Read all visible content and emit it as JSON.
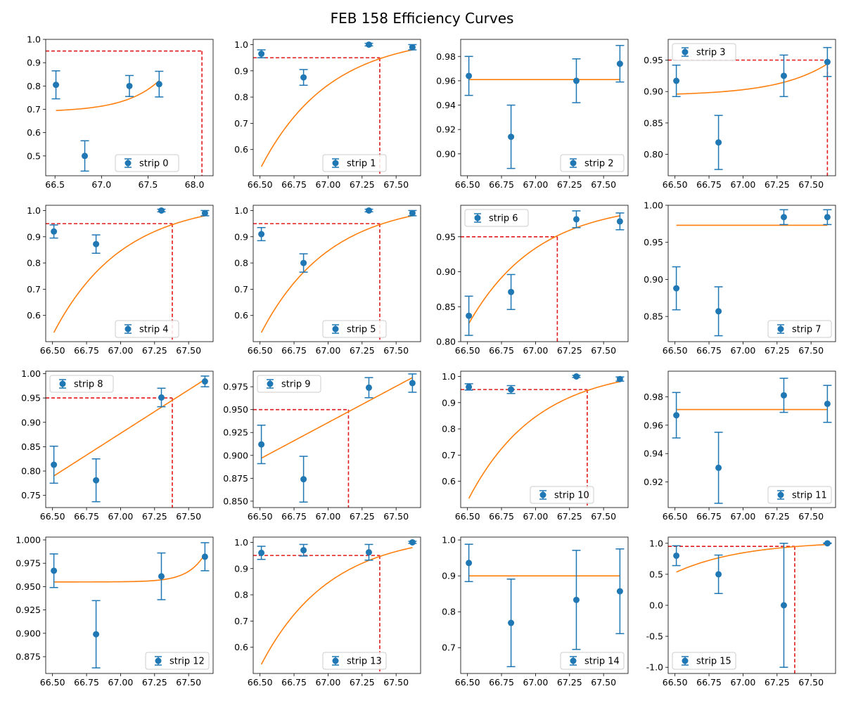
{
  "title": "FEB 158 Efficiency Curves",
  "colors": {
    "points": "#1f77b4",
    "fit": "#ff7f0e",
    "threshold": "#e31a1c",
    "axis": "#000000"
  },
  "chart_data": [
    {
      "type": "scatter",
      "legend": "strip 0",
      "legend_loc": "lower-center",
      "x": [
        66.51,
        66.82,
        67.3,
        67.62
      ],
      "y": [
        0.805,
        0.5,
        0.8,
        0.808
      ],
      "yerr": [
        0.06,
        0.065,
        0.045,
        0.055
      ],
      "fit_x": [
        66.51,
        67.62
      ],
      "fit_y": [
        0.695,
        0.823
      ],
      "fit_shape": "convex-rising",
      "threshold": {
        "x": 68.08,
        "y": 0.95
      },
      "xlim": [
        66.4,
        68.2
      ],
      "ylim": [
        0.415,
        1.0
      ],
      "xticks": [
        "66.5",
        "67.0",
        "67.5",
        "68.0"
      ],
      "yticks": [
        "0.5",
        "0.6",
        "0.7",
        "0.8",
        "0.9",
        "1.0"
      ]
    },
    {
      "type": "scatter",
      "legend": "strip 1",
      "legend_loc": "lower-center",
      "x": [
        66.51,
        66.82,
        67.3,
        67.62
      ],
      "y": [
        0.965,
        0.875,
        1.0,
        0.99
      ],
      "yerr": [
        0.015,
        0.03,
        0.005,
        0.01
      ],
      "fit_x": [
        66.51,
        67.62
      ],
      "fit_y": [
        0.535,
        0.98
      ],
      "fit_shape": "saturating",
      "threshold": {
        "x": 67.38,
        "y": 0.95
      },
      "xlim": [
        66.45,
        67.68
      ],
      "ylim": [
        0.5,
        1.02
      ],
      "xticks": [
        "66.50",
        "66.75",
        "67.00",
        "67.25",
        "67.50"
      ],
      "yticks": [
        "0.6",
        "0.7",
        "0.8",
        "0.9",
        "1.0"
      ]
    },
    {
      "type": "scatter",
      "legend": "strip 2",
      "legend_loc": "lower-right",
      "x": [
        66.51,
        66.82,
        67.3,
        67.62
      ],
      "y": [
        0.964,
        0.914,
        0.96,
        0.974
      ],
      "yerr": [
        0.016,
        0.026,
        0.018,
        0.015
      ],
      "fit_x": [
        66.51,
        67.62
      ],
      "fit_y": [
        0.961,
        0.961
      ],
      "fit_shape": "flat",
      "threshold": null,
      "xlim": [
        66.45,
        67.68
      ],
      "ylim": [
        0.882,
        0.994
      ],
      "xticks": [
        "66.50",
        "66.75",
        "67.00",
        "67.25",
        "67.50"
      ],
      "yticks": [
        "0.90",
        "0.92",
        "0.94",
        "0.96",
        "0.98"
      ]
    },
    {
      "type": "scatter",
      "legend": "strip 3",
      "legend_loc": "upper-left",
      "x": [
        66.51,
        66.82,
        67.3,
        67.62
      ],
      "y": [
        0.917,
        0.819,
        0.925,
        0.947
      ],
      "yerr": [
        0.025,
        0.043,
        0.033,
        0.023
      ],
      "fit_x": [
        66.51,
        67.62
      ],
      "fit_y": [
        0.896,
        0.944
      ],
      "fit_shape": "convex-rising",
      "threshold": {
        "x": 67.62,
        "y": 0.95
      },
      "xlim": [
        66.45,
        67.68
      ],
      "ylim": [
        0.766,
        0.983
      ],
      "xticks": [
        "66.50",
        "66.75",
        "67.00",
        "67.25",
        "67.50"
      ],
      "yticks": [
        "0.80",
        "0.85",
        "0.90",
        "0.95"
      ]
    },
    {
      "type": "scatter",
      "legend": "strip 4",
      "legend_loc": "lower-center",
      "x": [
        66.51,
        66.82,
        67.3,
        67.62
      ],
      "y": [
        0.92,
        0.872,
        1.0,
        0.99
      ],
      "yerr": [
        0.025,
        0.035,
        0.005,
        0.01
      ],
      "fit_x": [
        66.51,
        67.62
      ],
      "fit_y": [
        0.535,
        0.98
      ],
      "fit_shape": "saturating",
      "threshold": {
        "x": 67.38,
        "y": 0.95
      },
      "xlim": [
        66.45,
        67.68
      ],
      "ylim": [
        0.5,
        1.02
      ],
      "xticks": [
        "66.50",
        "66.75",
        "67.00",
        "67.25",
        "67.50"
      ],
      "yticks": [
        "0.6",
        "0.7",
        "0.8",
        "0.9",
        "1.0"
      ]
    },
    {
      "type": "scatter",
      "legend": "strip 5",
      "legend_loc": "lower-center",
      "x": [
        66.51,
        66.82,
        67.3,
        67.62
      ],
      "y": [
        0.91,
        0.8,
        1.0,
        0.99
      ],
      "yerr": [
        0.025,
        0.035,
        0.005,
        0.01
      ],
      "fit_x": [
        66.51,
        67.62
      ],
      "fit_y": [
        0.535,
        0.98
      ],
      "fit_shape": "saturating",
      "threshold": {
        "x": 67.38,
        "y": 0.95
      },
      "xlim": [
        66.45,
        67.68
      ],
      "ylim": [
        0.5,
        1.02
      ],
      "xticks": [
        "66.50",
        "66.75",
        "67.00",
        "67.25",
        "67.50"
      ],
      "yticks": [
        "0.6",
        "0.7",
        "0.8",
        "0.9",
        "1.0"
      ]
    },
    {
      "type": "scatter",
      "legend": "strip 6",
      "legend_loc": "upper-left",
      "x": [
        66.51,
        66.82,
        67.3,
        67.62
      ],
      "y": [
        0.837,
        0.871,
        0.975,
        0.972
      ],
      "yerr": [
        0.028,
        0.025,
        0.012,
        0.012
      ],
      "fit_x": [
        66.51,
        67.62
      ],
      "fit_y": [
        0.826,
        0.98
      ],
      "fit_shape": "saturating",
      "threshold": {
        "x": 67.16,
        "y": 0.95
      },
      "xlim": [
        66.45,
        67.68
      ],
      "ylim": [
        0.8,
        0.995
      ],
      "xticks": [
        "66.50",
        "66.75",
        "67.00",
        "67.25",
        "67.50"
      ],
      "yticks": [
        "0.80",
        "0.85",
        "0.90",
        "0.95"
      ]
    },
    {
      "type": "scatter",
      "legend": "strip 7",
      "legend_loc": "lower-right",
      "x": [
        66.51,
        66.82,
        67.3,
        67.62
      ],
      "y": [
        0.888,
        0.857,
        0.984,
        0.984
      ],
      "yerr": [
        0.029,
        0.033,
        0.01,
        0.01
      ],
      "fit_x": [
        66.51,
        67.62
      ],
      "fit_y": [
        0.973,
        0.973
      ],
      "fit_shape": "flat",
      "threshold": null,
      "xlim": [
        66.45,
        67.68
      ],
      "ylim": [
        0.816,
        1.0
      ],
      "xticks": [
        "66.50",
        "66.75",
        "67.00",
        "67.25",
        "67.50"
      ],
      "yticks": [
        "0.85",
        "0.90",
        "0.95",
        "1.00"
      ]
    },
    {
      "type": "scatter",
      "legend": "strip 8",
      "legend_loc": "upper-left",
      "x": [
        66.51,
        66.82,
        67.3,
        67.62
      ],
      "y": [
        0.813,
        0.781,
        0.951,
        0.984
      ],
      "yerr": [
        0.038,
        0.044,
        0.019,
        0.011
      ],
      "fit_x": [
        66.51,
        67.62
      ],
      "fit_y": [
        0.79,
        0.988
      ],
      "fit_shape": "linear",
      "threshold": {
        "x": 67.38,
        "y": 0.95
      },
      "xlim": [
        66.45,
        67.68
      ],
      "ylim": [
        0.725,
        1.005
      ],
      "xticks": [
        "66.50",
        "66.75",
        "67.00",
        "67.25",
        "67.50"
      ],
      "yticks": [
        "0.75",
        "0.80",
        "0.85",
        "0.90",
        "0.95",
        "1.00"
      ]
    },
    {
      "type": "scatter",
      "legend": "strip 9",
      "legend_loc": "upper-left",
      "x": [
        66.51,
        66.82,
        67.3,
        67.62
      ],
      "y": [
        0.912,
        0.874,
        0.974,
        0.979
      ],
      "yerr": [
        0.021,
        0.025,
        0.011,
        0.01
      ],
      "fit_x": [
        66.51,
        67.62
      ],
      "fit_y": [
        0.897,
        0.985
      ],
      "fit_shape": "linear",
      "threshold": {
        "x": 67.15,
        "y": 0.95
      },
      "xlim": [
        66.45,
        67.68
      ],
      "ylim": [
        0.843,
        0.992
      ],
      "xticks": [
        "66.50",
        "66.75",
        "67.00",
        "67.25",
        "67.50"
      ],
      "yticks": [
        "0.850",
        "0.875",
        "0.900",
        "0.925",
        "0.950",
        "0.975"
      ]
    },
    {
      "type": "scatter",
      "legend": "strip 10",
      "legend_loc": "lower-center",
      "x": [
        66.51,
        66.82,
        67.3,
        67.62
      ],
      "y": [
        0.96,
        0.95,
        1.0,
        0.99
      ],
      "yerr": [
        0.012,
        0.015,
        0.004,
        0.008
      ],
      "fit_x": [
        66.51,
        67.62
      ],
      "fit_y": [
        0.535,
        0.98
      ],
      "fit_shape": "saturating",
      "threshold": {
        "x": 67.38,
        "y": 0.95
      },
      "xlim": [
        66.45,
        67.68
      ],
      "ylim": [
        0.5,
        1.02
      ],
      "xticks": [
        "66.50",
        "66.75",
        "67.00",
        "67.25",
        "67.50"
      ],
      "yticks": [
        "0.6",
        "0.7",
        "0.8",
        "0.9",
        "1.0"
      ]
    },
    {
      "type": "scatter",
      "legend": "strip 11",
      "legend_loc": "lower-right",
      "x": [
        66.51,
        66.82,
        67.3,
        67.62
      ],
      "y": [
        0.967,
        0.93,
        0.981,
        0.975
      ],
      "yerr": [
        0.016,
        0.025,
        0.012,
        0.013
      ],
      "fit_x": [
        66.51,
        67.62
      ],
      "fit_y": [
        0.971,
        0.971
      ],
      "fit_shape": "flat",
      "threshold": null,
      "xlim": [
        66.45,
        67.68
      ],
      "ylim": [
        0.902,
        0.998
      ],
      "xticks": [
        "66.50",
        "66.75",
        "67.00",
        "67.25",
        "67.50"
      ],
      "yticks": [
        "0.92",
        "0.94",
        "0.96",
        "0.98"
      ]
    },
    {
      "type": "scatter",
      "legend": "strip 12",
      "legend_loc": "lower-right",
      "x": [
        66.51,
        66.82,
        67.3,
        67.62
      ],
      "y": [
        0.967,
        0.899,
        0.961,
        0.982
      ],
      "yerr": [
        0.018,
        0.036,
        0.025,
        0.015
      ],
      "fit_x": [
        66.51,
        67.62
      ],
      "fit_y": [
        0.955,
        0.985
      ],
      "fit_shape": "late-rise",
      "threshold": null,
      "xlim": [
        66.45,
        67.68
      ],
      "ylim": [
        0.857,
        1.003
      ],
      "xticks": [
        "66.50",
        "66.75",
        "67.00",
        "67.25",
        "67.50"
      ],
      "yticks": [
        "0.875",
        "0.900",
        "0.925",
        "0.950",
        "0.975",
        "1.000"
      ]
    },
    {
      "type": "scatter",
      "legend": "strip 13",
      "legend_loc": "lower-center",
      "x": [
        66.51,
        66.82,
        67.3,
        67.62
      ],
      "y": [
        0.96,
        0.97,
        0.962,
        1.0
      ],
      "yerr": [
        0.025,
        0.022,
        0.03,
        0.004
      ],
      "fit_x": [
        66.51,
        67.62
      ],
      "fit_y": [
        0.535,
        0.98
      ],
      "fit_shape": "saturating",
      "threshold": {
        "x": 67.38,
        "y": 0.95
      },
      "xlim": [
        66.45,
        67.68
      ],
      "ylim": [
        0.5,
        1.02
      ],
      "xticks": [
        "66.50",
        "66.75",
        "67.00",
        "67.25",
        "67.50"
      ],
      "yticks": [
        "0.6",
        "0.7",
        "0.8",
        "0.9",
        "1.0"
      ]
    },
    {
      "type": "scatter",
      "legend": "strip 14",
      "legend_loc": "lower-right",
      "x": [
        66.51,
        66.82,
        67.3,
        67.62
      ],
      "y": [
        0.936,
        0.769,
        0.833,
        0.857
      ],
      "yerr": [
        0.052,
        0.122,
        0.138,
        0.118
      ],
      "fit_x": [
        66.51,
        67.62
      ],
      "fit_y": [
        0.9,
        0.9
      ],
      "fit_shape": "flat",
      "threshold": null,
      "xlim": [
        66.45,
        67.68
      ],
      "ylim": [
        0.628,
        1.008
      ],
      "xticks": [
        "66.50",
        "66.75",
        "67.00",
        "67.25",
        "67.50"
      ],
      "yticks": [
        "0.7",
        "0.8",
        "0.9",
        "1.0"
      ]
    },
    {
      "type": "scatter",
      "legend": "strip 15",
      "legend_loc": "lower-left",
      "x": [
        66.51,
        66.82,
        67.3,
        67.62
      ],
      "y": [
        0.8,
        0.5,
        0.0,
        1.0
      ],
      "yerr": [
        0.16,
        0.31,
        1.0,
        0.005
      ],
      "fit_x": [
        66.51,
        67.62
      ],
      "fit_y": [
        0.535,
        0.98
      ],
      "fit_shape": "saturating",
      "threshold": {
        "x": 67.38,
        "y": 0.95
      },
      "xlim": [
        66.45,
        67.68
      ],
      "ylim": [
        -1.1,
        1.1
      ],
      "xticks": [
        "66.50",
        "66.75",
        "67.00",
        "67.25",
        "67.50"
      ],
      "yticks": [
        "-1.0",
        "-0.5",
        "0.0",
        "0.5",
        "1.0"
      ]
    }
  ]
}
